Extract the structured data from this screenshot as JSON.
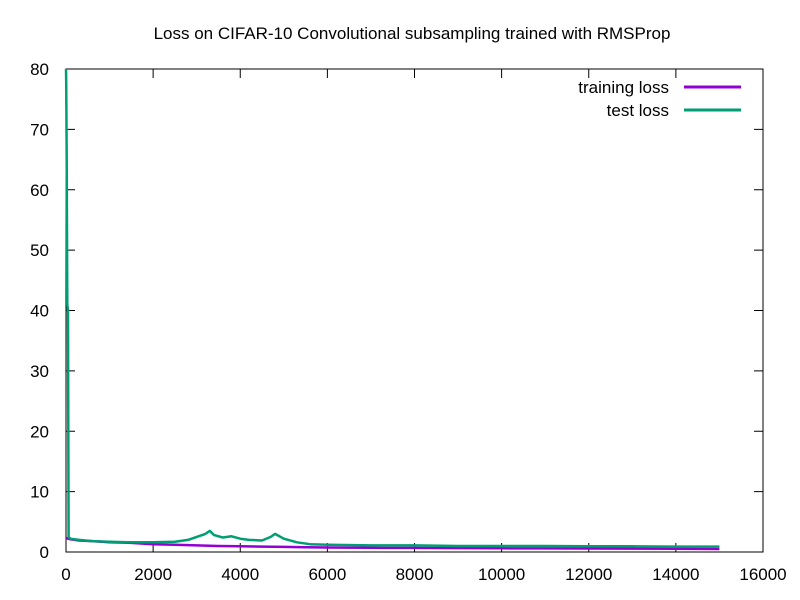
{
  "chart_data": {
    "type": "line",
    "title": "Loss on CIFAR-10 Convolutional subsampling trained with RMSProp",
    "xlabel": "",
    "ylabel": "",
    "xlim": [
      0,
      16000
    ],
    "ylim": [
      0,
      80
    ],
    "xticks": [
      0,
      2000,
      4000,
      6000,
      8000,
      10000,
      12000,
      14000,
      16000
    ],
    "yticks": [
      0,
      10,
      20,
      30,
      40,
      50,
      60,
      70,
      80
    ],
    "grid": false,
    "legend_position": "top-right",
    "series": [
      {
        "name": "training loss",
        "color": "#9400d3",
        "points": [
          [
            0,
            2.3
          ],
          [
            100,
            2.1
          ],
          [
            300,
            1.9
          ],
          [
            600,
            1.8
          ],
          [
            1000,
            1.6
          ],
          [
            1500,
            1.5
          ],
          [
            2000,
            1.3
          ],
          [
            2500,
            1.2
          ],
          [
            3000,
            1.1
          ],
          [
            3500,
            1.0
          ],
          [
            4000,
            0.95
          ],
          [
            4500,
            0.9
          ],
          [
            5000,
            0.85
          ],
          [
            5500,
            0.8
          ],
          [
            6000,
            0.75
          ],
          [
            7000,
            0.7
          ],
          [
            8000,
            0.68
          ],
          [
            9000,
            0.65
          ],
          [
            10000,
            0.62
          ],
          [
            11000,
            0.6
          ],
          [
            12000,
            0.58
          ],
          [
            13000,
            0.56
          ],
          [
            14000,
            0.55
          ],
          [
            15000,
            0.5
          ]
        ]
      },
      {
        "name": "test loss",
        "color": "#009e73",
        "points": [
          [
            0,
            80
          ],
          [
            5,
            78
          ],
          [
            15,
            65
          ],
          [
            30,
            41
          ],
          [
            45,
            40
          ],
          [
            60,
            2.5
          ],
          [
            100,
            2.2
          ],
          [
            300,
            2.0
          ],
          [
            600,
            1.8
          ],
          [
            1000,
            1.7
          ],
          [
            1500,
            1.6
          ],
          [
            2000,
            1.6
          ],
          [
            2500,
            1.7
          ],
          [
            2800,
            2.0
          ],
          [
            3000,
            2.5
          ],
          [
            3200,
            3.0
          ],
          [
            3300,
            3.5
          ],
          [
            3400,
            2.8
          ],
          [
            3600,
            2.4
          ],
          [
            3800,
            2.6
          ],
          [
            4000,
            2.2
          ],
          [
            4200,
            2.0
          ],
          [
            4500,
            1.9
          ],
          [
            4700,
            2.5
          ],
          [
            4800,
            3.0
          ],
          [
            5000,
            2.2
          ],
          [
            5300,
            1.6
          ],
          [
            5600,
            1.3
          ],
          [
            6000,
            1.2
          ],
          [
            7000,
            1.1
          ],
          [
            8000,
            1.1
          ],
          [
            9000,
            1.0
          ],
          [
            10000,
            1.0
          ],
          [
            11000,
            1.0
          ],
          [
            12000,
            0.95
          ],
          [
            13000,
            0.95
          ],
          [
            14000,
            0.9
          ],
          [
            15000,
            0.9
          ]
        ]
      }
    ]
  }
}
